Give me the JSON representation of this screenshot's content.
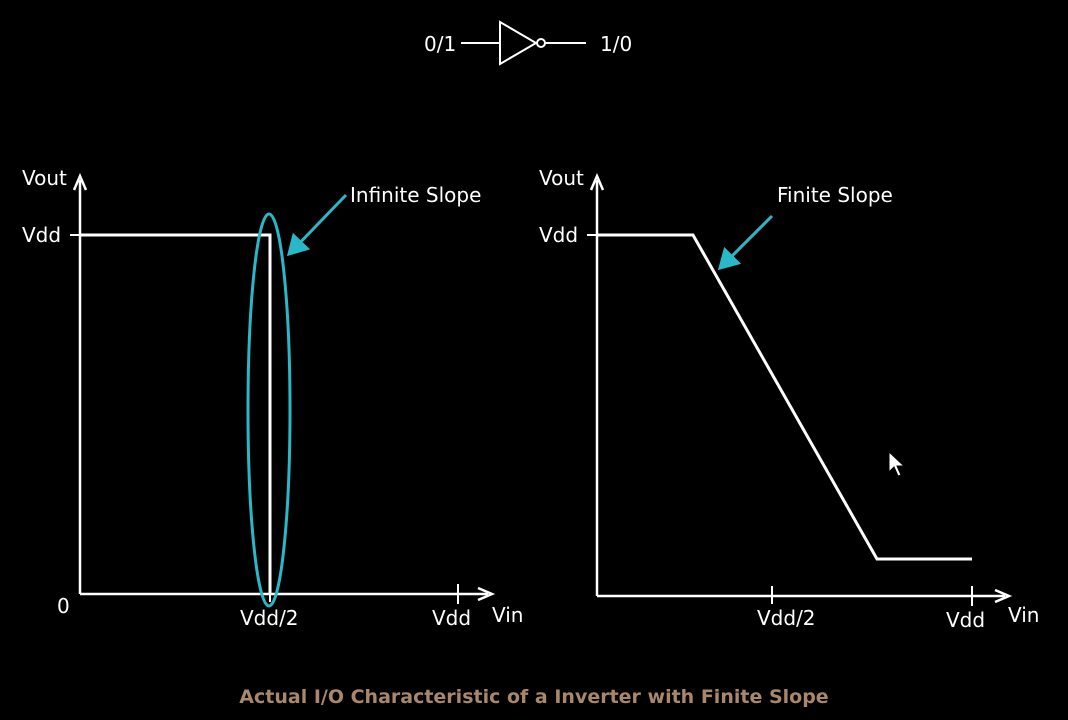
{
  "inverter": {
    "input_label": "0/1",
    "output_label": "1/0"
  },
  "left_plot": {
    "y_axis_label": "Vout",
    "y_tick_label": "Vdd",
    "origin_label": "0",
    "x_mid_label": "Vdd/2",
    "x_end_label": "Vdd",
    "x_axis_label": "Vin",
    "annotation": "Infinite Slope"
  },
  "right_plot": {
    "y_axis_label": "Vout",
    "y_tick_label": "Vdd",
    "x_mid_label": "Vdd/2",
    "x_end_label": "Vdd",
    "x_axis_label": "Vin",
    "annotation": "Finite Slope"
  },
  "caption": "Actual I/O Characteristic of a Inverter with Finite Slope",
  "colors": {
    "background": "#000000",
    "line": "#ffffff",
    "highlight": "#29b8c8",
    "caption": "#a8876a"
  }
}
